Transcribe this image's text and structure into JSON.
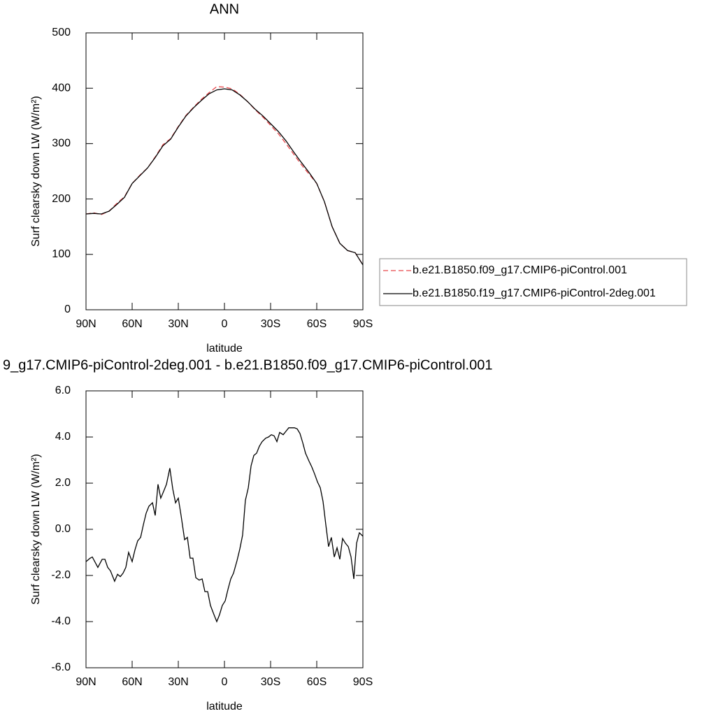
{
  "chart_data": [
    {
      "type": "line",
      "title": "ANN",
      "xlabel": "latitude",
      "ylabel": "Surf clearsky down LW (W/m²)",
      "x": [
        90,
        85,
        80,
        75,
        70,
        65,
        60,
        55,
        50,
        45,
        40,
        35,
        30,
        25,
        20,
        15,
        10,
        5,
        0,
        -5,
        -10,
        -15,
        -20,
        -25,
        -30,
        -35,
        -40,
        -45,
        -50,
        -55,
        -60,
        -65,
        -70,
        -75,
        -80,
        -85,
        -90
      ],
      "series": [
        {
          "name": "b.e21.B1850.f09_g17.CMIP6-piControl.001",
          "color": "#e8474b",
          "linestyle": "dashed",
          "values": [
            173,
            175,
            172,
            178,
            192,
            204,
            228,
            243,
            256,
            276,
            298,
            309,
            331,
            351,
            366,
            380,
            392,
            403,
            402,
            399,
            389,
            376,
            361,
            348,
            333,
            318,
            300,
            281,
            262,
            245,
            228,
            195,
            150,
            120,
            107,
            103,
            81
          ]
        },
        {
          "name": "b.e21.B1850.f19_g17.CMIP6-piControl-2deg.001",
          "color": "#000000",
          "linestyle": "solid",
          "values": [
            173,
            174,
            173,
            178,
            190,
            203,
            228,
            242,
            256,
            275,
            296,
            308,
            330,
            350,
            365,
            378,
            390,
            397,
            399,
            397,
            388,
            376,
            362,
            350,
            336,
            322,
            305,
            285,
            266,
            248,
            228,
            195,
            150,
            120,
            107,
            103,
            81
          ]
        }
      ],
      "xlim": [
        90,
        -90
      ],
      "xticks": [
        {
          "value": 90,
          "label": "90N"
        },
        {
          "value": 60,
          "label": "60N"
        },
        {
          "value": 30,
          "label": "30N"
        },
        0,
        {
          "value": -30,
          "label": "30S"
        },
        {
          "value": -60,
          "label": "60S"
        },
        {
          "value": -90,
          "label": "90S"
        }
      ],
      "ylim": [
        0,
        500
      ],
      "yticks": [
        0,
        100,
        200,
        300,
        400,
        500
      ],
      "legend": "outside-right"
    },
    {
      "type": "line",
      "title": "9_g17.CMIP6-piControl-2deg.001 - b.e21.B1850.f09_g17.CMIP6-piControl.001",
      "xlabel": "latitude",
      "ylabel": "Surf clearsky down LW (W/m²)",
      "x": [
        90,
        87.3,
        85.9,
        82.3,
        79.5,
        77.7,
        75.9,
        74.1,
        71.4,
        69.5,
        67.7,
        65.9,
        64.1,
        62.3,
        60,
        58.2,
        56.4,
        54.5,
        52.7,
        50.9,
        49.1,
        46.8,
        45,
        43.2,
        41.4,
        39.5,
        37.7,
        35.5,
        33.6,
        31.8,
        30,
        28.2,
        25.9,
        24.1,
        22.3,
        20.5,
        18.6,
        16.4,
        14.5,
        12.7,
        10.9,
        9.1,
        6.8,
        5,
        3.2,
        1.4,
        -0.5,
        -2.3,
        -4.1,
        -5.9,
        -8.2,
        -10,
        -11.8,
        -13.6,
        -15.5,
        -17.3,
        -19.1,
        -20.9,
        -22.7,
        -24.5,
        -26.8,
        -28.6,
        -30.5,
        -32.3,
        -34.1,
        -35.9,
        -38.2,
        -40,
        -41.8,
        -43.6,
        -45.5,
        -47.3,
        -49.1,
        -50.9,
        -52.7,
        -55,
        -56.8,
        -58.6,
        -60.5,
        -62.3,
        -64.1,
        -65.9,
        -67.7,
        -69.5,
        -71.4,
        -73.2,
        -75,
        -76.8,
        -78.6,
        -80.5,
        -82.3,
        -84.1,
        -85.9,
        -87.7,
        -90
      ],
      "color": "#000000",
      "values": [
        -1.4,
        -1.25,
        -1.2,
        -1.65,
        -1.3,
        -1.3,
        -1.65,
        -1.8,
        -2.25,
        -1.95,
        -2.05,
        -1.9,
        -1.65,
        -1.0,
        -1.4,
        -0.9,
        -0.5,
        -0.35,
        0.2,
        0.7,
        1.0,
        1.15,
        0.6,
        1.95,
        1.35,
        1.65,
        1.95,
        2.65,
        1.75,
        1.15,
        1.35,
        0.6,
        -0.45,
        -0.35,
        -1.25,
        -1.25,
        -2.1,
        -2.2,
        -2.15,
        -2.7,
        -2.7,
        -3.3,
        -3.7,
        -4.0,
        -3.7,
        -3.3,
        -3.1,
        -2.6,
        -2.15,
        -1.9,
        -1.35,
        -0.85,
        -0.25,
        1.25,
        1.8,
        2.75,
        3.2,
        3.3,
        3.6,
        3.8,
        3.95,
        4.0,
        4.1,
        4.05,
        3.8,
        4.2,
        4.1,
        4.25,
        4.4,
        4.4,
        4.4,
        4.35,
        4.15,
        3.75,
        3.3,
        2.95,
        2.7,
        2.4,
        2.05,
        1.8,
        1.2,
        0.2,
        -0.75,
        -0.35,
        -1.2,
        -0.8,
        -1.3,
        -0.4,
        -0.6,
        -0.75,
        -1.2,
        -2.15,
        -0.6,
        -0.15,
        -0.3
      ],
      "xlim": [
        90,
        -90
      ],
      "xticks": [
        {
          "value": 90,
          "label": "90N"
        },
        {
          "value": 60,
          "label": "60N"
        },
        {
          "value": 30,
          "label": "30N"
        },
        0,
        {
          "value": -30,
          "label": "30S"
        },
        {
          "value": -60,
          "label": "60S"
        },
        {
          "value": -90,
          "label": "90S"
        }
      ],
      "ylim": [
        -6,
        6
      ],
      "yticks": [
        {
          "value": -6,
          "label": "-6.0"
        },
        {
          "value": -4,
          "label": "-4.0"
        },
        {
          "value": -2,
          "label": "-2.0"
        },
        {
          "value": 0,
          "label": "0.0"
        },
        {
          "value": 2,
          "label": "2.0"
        },
        {
          "value": 4,
          "label": "4.0"
        },
        {
          "value": 6,
          "label": "6.0"
        }
      ]
    }
  ]
}
